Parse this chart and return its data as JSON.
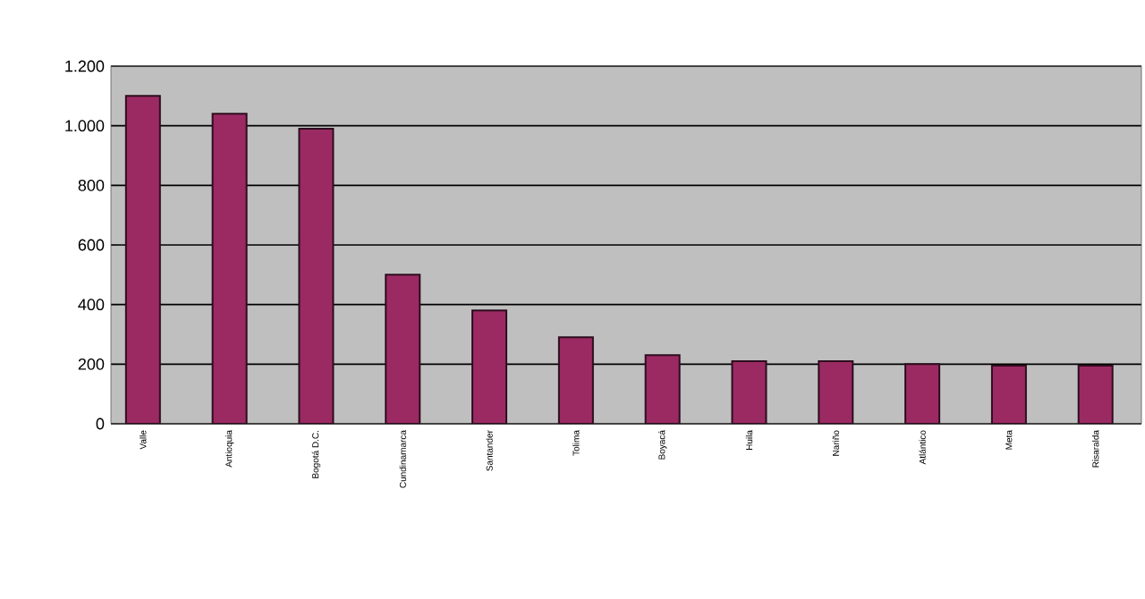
{
  "chart_data": {
    "type": "bar",
    "categories": [
      "Valle",
      "Antioquia",
      "Bogotá D.C.",
      "Cundinamarca",
      "Santander",
      "Tolima",
      "Boyacá",
      "Huila",
      "Nariño",
      "Atlántico",
      "Meta",
      "Risaralda"
    ],
    "values": [
      1100,
      1040,
      990,
      500,
      380,
      290,
      230,
      210,
      210,
      200,
      195,
      195
    ],
    "color": "#9b2a63",
    "ylim": [
      0,
      1200
    ],
    "yticks": [
      0,
      200,
      400,
      600,
      800,
      {
        "value": 1000,
        "label": "1.000"
      },
      {
        "value": 1200,
        "label": "1.200"
      }
    ],
    "grid": "y"
  }
}
